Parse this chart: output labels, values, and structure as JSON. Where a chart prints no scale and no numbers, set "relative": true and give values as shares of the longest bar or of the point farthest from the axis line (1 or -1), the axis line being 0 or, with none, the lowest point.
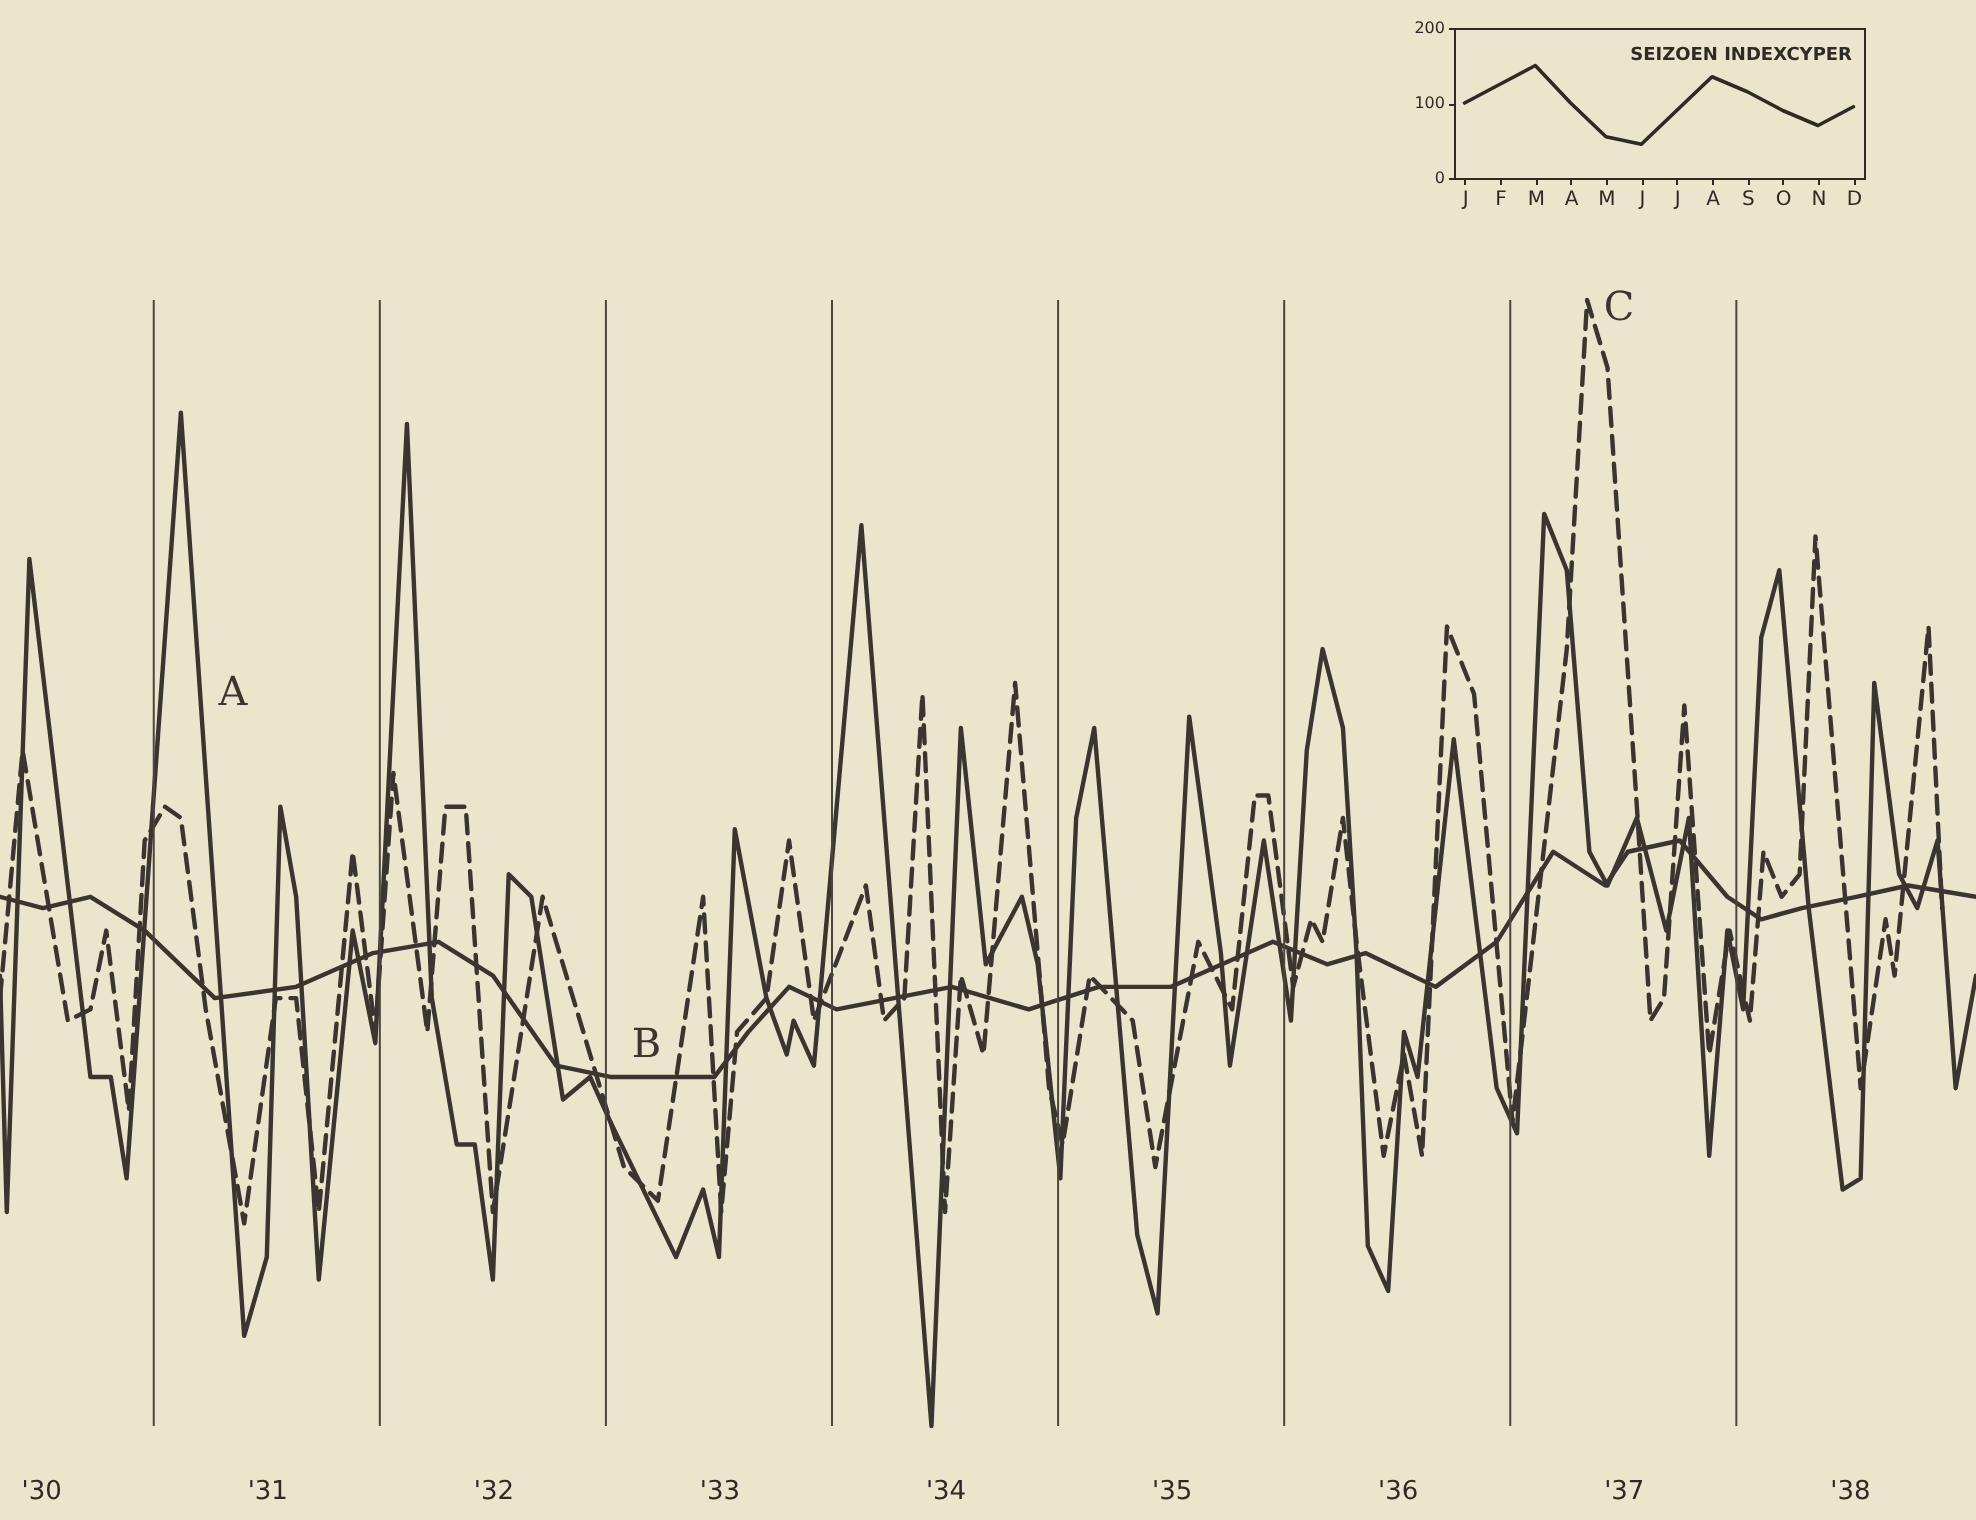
{
  "chart_data": [
    {
      "type": "line",
      "relative": true,
      "line_style": "solid",
      "xlim": [
        29.82,
        38.56
      ],
      "xticks": [
        {
          "value": 30,
          "label": "'30"
        },
        {
          "value": 31,
          "label": "'31"
        },
        {
          "value": 32,
          "label": "'32"
        },
        {
          "value": 33,
          "label": "'33"
        },
        {
          "value": 34,
          "label": "'34"
        },
        {
          "value": 35,
          "label": "'35"
        },
        {
          "value": 36,
          "label": "'36"
        },
        {
          "value": 37,
          "label": "'37"
        },
        {
          "value": 38,
          "label": "'38"
        }
      ],
      "ref_lines": [
        {
          "axis": "x",
          "value": 30.5,
          "color": "#4a4540"
        },
        {
          "axis": "x",
          "value": 31.5,
          "color": "#4a4540"
        },
        {
          "axis": "x",
          "value": 32.5,
          "color": "#4a4540"
        },
        {
          "axis": "x",
          "value": 33.5,
          "color": "#4a4540"
        },
        {
          "axis": "x",
          "value": 34.5,
          "color": "#4a4540"
        },
        {
          "axis": "x",
          "value": 35.5,
          "color": "#4a4540"
        },
        {
          "axis": "x",
          "value": 36.5,
          "color": "#4a4540"
        },
        {
          "axis": "x",
          "value": 37.5,
          "color": "#4a4540"
        }
      ],
      "series": [
        {
          "name": "A",
          "color": "#3a3530",
          "x": [
            29.82,
            29.85,
            29.95,
            30.22,
            30.31,
            30.38,
            30.62,
            30.9,
            31.0,
            31.06,
            31.13,
            31.23,
            31.38,
            31.48,
            31.62,
            31.73,
            31.84,
            31.92,
            32.0,
            32.07,
            32.17,
            32.31,
            32.43,
            32.52,
            32.81,
            32.93,
            33.0,
            33.07,
            33.21,
            33.3,
            33.33,
            33.42,
            33.63,
            33.94,
            34.07,
            34.18,
            34.34,
            34.41,
            34.51,
            34.58,
            34.66,
            34.85,
            34.94,
            35.08,
            35.22,
            35.26,
            35.41,
            35.53,
            35.6,
            35.67,
            35.76,
            35.82,
            35.87,
            35.96,
            36.03,
            36.09,
            36.25,
            36.44,
            36.53,
            36.65,
            36.75,
            36.85,
            36.93,
            37.06,
            37.19,
            37.29,
            37.38,
            37.46,
            37.53,
            37.61,
            37.69,
            37.82,
            37.97,
            38.05,
            38.11,
            38.22,
            38.3,
            38.39,
            38.47,
            38.56
          ],
          "values": [
            0.4,
            0.19,
            0.77,
            0.31,
            0.31,
            0.22,
            0.9,
            0.08,
            0.15,
            0.55,
            0.47,
            0.13,
            0.44,
            0.34,
            0.89,
            0.38,
            0.25,
            0.25,
            0.13,
            0.49,
            0.47,
            0.29,
            0.31,
            0.27,
            0.15,
            0.21,
            0.15,
            0.53,
            0.38,
            0.33,
            0.36,
            0.32,
            0.8,
            0,
            0.62,
            0.41,
            0.47,
            0.41,
            0.22,
            0.54,
            0.62,
            0.17,
            0.1,
            0.63,
            0.42,
            0.32,
            0.52,
            0.36,
            0.6,
            0.69,
            0.62,
            0.42,
            0.16,
            0.12,
            0.35,
            0.31,
            0.61,
            0.3,
            0.26,
            0.81,
            0.76,
            0.51,
            0.48,
            0.54,
            0.44,
            0.54,
            0.24,
            0.44,
            0.37,
            0.7,
            0.76,
            0.46,
            0.21,
            0.22,
            0.66,
            0.49,
            0.46,
            0.52,
            0.3,
            0.4
          ]
        },
        {
          "name": "B",
          "color": "#3a3530",
          "x": [
            29.82,
            30.01,
            30.22,
            30.46,
            30.77,
            31.13,
            31.47,
            31.76,
            32.0,
            32.28,
            32.52,
            32.98,
            33.13,
            33.31,
            33.52,
            34.03,
            34.37,
            34.68,
            35.0,
            35.45,
            35.69,
            35.86,
            36.17,
            36.44,
            36.69,
            36.92,
            37.02,
            37.25,
            37.46,
            37.61,
            37.79,
            38.03,
            38.26,
            38.56
          ],
          "values": [
            0.47,
            0.46,
            0.47,
            0.44,
            0.38,
            0.39,
            0.42,
            0.43,
            0.4,
            0.32,
            0.31,
            0.31,
            0.35,
            0.39,
            0.37,
            0.39,
            0.37,
            0.39,
            0.39,
            0.43,
            0.41,
            0.42,
            0.39,
            0.43,
            0.51,
            0.48,
            0.51,
            0.52,
            0.47,
            0.45,
            0.46,
            0.47,
            0.48,
            0.47
          ]
        },
        {
          "name": "C",
          "color": "#3a3530",
          "line_style": "dashed",
          "x": [
            29.82,
            29.92,
            30.12,
            30.22,
            30.29,
            30.39,
            30.46,
            30.55,
            30.62,
            30.73,
            30.9,
            31.04,
            31.13,
            31.23,
            31.38,
            31.48,
            31.56,
            31.71,
            31.79,
            31.88,
            32.0,
            32.22,
            32.46,
            32.58,
            32.73,
            32.93,
            33.01,
            33.08,
            33.21,
            33.31,
            33.42,
            33.65,
            33.73,
            33.82,
            33.9,
            34.0,
            34.07,
            34.17,
            34.31,
            34.46,
            34.52,
            34.64,
            34.83,
            34.93,
            35.12,
            35.27,
            35.37,
            35.43,
            35.54,
            35.62,
            35.67,
            35.76,
            35.82,
            35.94,
            36.03,
            36.11,
            36.22,
            36.34,
            36.51,
            36.75,
            36.84,
            36.93,
            37.06,
            37.12,
            37.18,
            37.27,
            37.38,
            37.47,
            37.56,
            37.62,
            37.7,
            37.78,
            37.85,
            38.05,
            38.16,
            38.2,
            38.35,
            38.41
          ],
          "values": [
            0.38,
            0.6,
            0.36,
            0.37,
            0.44,
            0.28,
            0.52,
            0.55,
            0.54,
            0.37,
            0.18,
            0.38,
            0.38,
            0.19,
            0.51,
            0.35,
            0.58,
            0.35,
            0.55,
            0.55,
            0.19,
            0.47,
            0.31,
            0.23,
            0.2,
            0.47,
            0.19,
            0.35,
            0.38,
            0.52,
            0.36,
            0.48,
            0.36,
            0.38,
            0.65,
            0.19,
            0.4,
            0.33,
            0.66,
            0.3,
            0.25,
            0.4,
            0.36,
            0.23,
            0.43,
            0.37,
            0.56,
            0.56,
            0.39,
            0.45,
            0.43,
            0.54,
            0.43,
            0.24,
            0.33,
            0.24,
            0.71,
            0.65,
            0.27,
            0.69,
            1,
            0.94,
            0.55,
            0.36,
            0.38,
            0.64,
            0.33,
            0.44,
            0.36,
            0.51,
            0.47,
            0.49,
            0.79,
            0.3,
            0.45,
            0.4,
            0.71,
            0.46
          ]
        }
      ]
    },
    {
      "type": "line",
      "title": "SEIZOEN INDEXCYPER",
      "categories": [
        "J",
        "F",
        "M",
        "A",
        "M",
        "J",
        "J",
        "A",
        "S",
        "O",
        "N",
        "D"
      ],
      "ylim": [
        0,
        200
      ],
      "yticks": [
        0,
        100,
        200
      ],
      "series": [
        {
          "color": "#2e2a26",
          "values": [
            100,
            125,
            150,
            100,
            55,
            45,
            90,
            135,
            115,
            90,
            70,
            95
          ]
        }
      ]
    }
  ]
}
